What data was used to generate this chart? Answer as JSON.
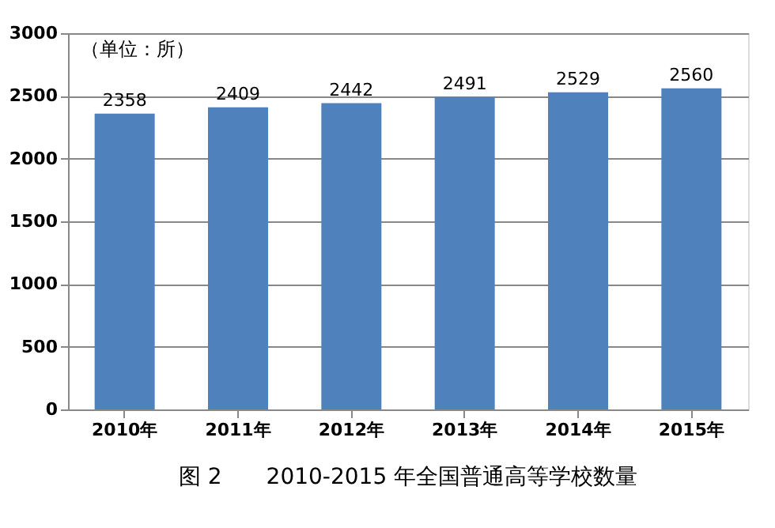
{
  "chart_data": {
    "type": "bar",
    "title": "图 2　　2010-2015 年全国普通高等学校数量",
    "categories": [
      "2010年",
      "2011年",
      "2012年",
      "2013年",
      "2014年",
      "2015年"
    ],
    "values": [
      2358,
      2409,
      2442,
      2491,
      2529,
      2560
    ],
    "color": "#4f81bd",
    "ylim": [
      0,
      3000
    ],
    "yticks": [
      0,
      500,
      1000,
      1500,
      2000,
      2500,
      3000
    ],
    "grid": "y",
    "data_labels": true,
    "annotations": [
      "（单位：所）"
    ]
  }
}
